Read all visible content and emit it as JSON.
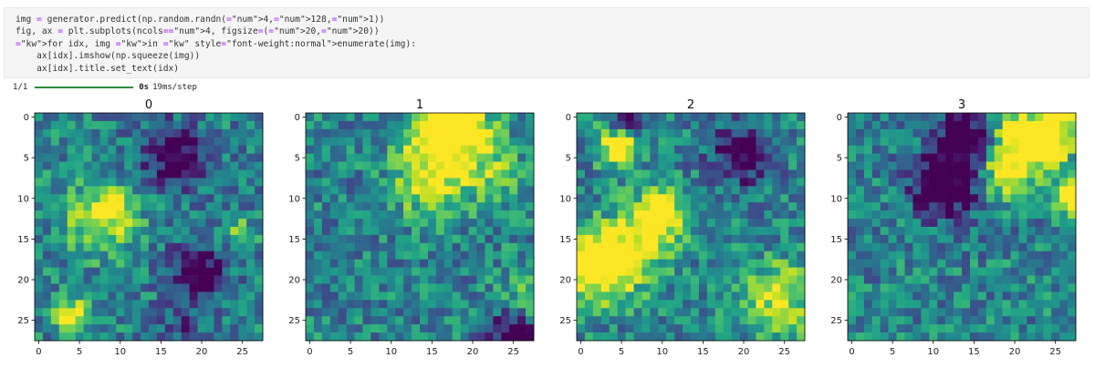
{
  "code_lines": [
    "img = generator.predict(np.random.randn(4,128,1))",
    "fig, ax = plt.subplots(ncols=4, figsize=(20,20))",
    "for idx, img in enumerate(img):",
    "    ax[idx].imshow(np.squeeze(img))",
    "    ax[idx].title.set_text(idx)"
  ],
  "output": {
    "progress_count": "1/1",
    "progress_time": "0s",
    "progress_rate": "19ms/step",
    "progress_fraction": 1.0
  },
  "chart_data": [
    {
      "type": "heatmap",
      "title": "0",
      "xticks": [
        "0",
        "5",
        "10",
        "15",
        "20",
        "25"
      ],
      "yticks": [
        "0",
        "5",
        "10",
        "15",
        "20",
        "25"
      ],
      "grid_size": 28,
      "colormap": "viridis"
    },
    {
      "type": "heatmap",
      "title": "1",
      "xticks": [
        "0",
        "5",
        "10",
        "15",
        "20",
        "25"
      ],
      "yticks": [
        "0",
        "5",
        "10",
        "15",
        "20",
        "25"
      ],
      "grid_size": 28,
      "colormap": "viridis"
    },
    {
      "type": "heatmap",
      "title": "2",
      "xticks": [
        "0",
        "5",
        "10",
        "15",
        "20",
        "25"
      ],
      "yticks": [
        "0",
        "5",
        "10",
        "15",
        "20",
        "25"
      ],
      "grid_size": 28,
      "colormap": "viridis"
    },
    {
      "type": "heatmap",
      "title": "3",
      "xticks": [
        "0",
        "5",
        "10",
        "15",
        "20",
        "25"
      ],
      "yticks": [
        "0",
        "5",
        "10",
        "15",
        "20",
        "25"
      ],
      "grid_size": 28,
      "colormap": "viridis"
    }
  ],
  "colors": {
    "progress_bar": "#2e8b3a",
    "cell_background": "#f5f5f5"
  }
}
